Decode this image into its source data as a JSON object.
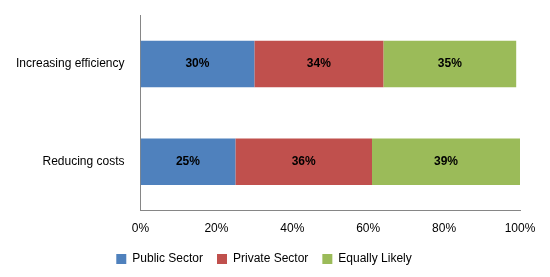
{
  "chart_data": {
    "type": "bar",
    "orientation": "horizontal",
    "stacked": true,
    "categories": [
      "Increasing efficiency",
      "Reducing costs"
    ],
    "series": [
      {
        "name": "Public Sector",
        "color": "#4f81bd",
        "values": [
          30,
          25
        ],
        "value_labels": [
          "30%",
          "25%"
        ]
      },
      {
        "name": "Private Sector",
        "color": "#c0504d",
        "values": [
          34,
          36
        ],
        "value_labels": [
          "34%",
          "36%"
        ]
      },
      {
        "name": "Equally Likely",
        "color": "#9bbb59",
        "values": [
          35,
          39
        ],
        "value_labels": [
          "35%",
          "39%"
        ]
      }
    ],
    "xlim": [
      0,
      100
    ],
    "xticks": [
      {
        "value": 0,
        "label": "0%"
      },
      {
        "value": 20,
        "label": "20%"
      },
      {
        "value": 40,
        "label": "40%"
      },
      {
        "value": 60,
        "label": "60%"
      },
      {
        "value": 80,
        "label": "80%"
      },
      {
        "value": 100,
        "label": "100%"
      }
    ],
    "grid": false,
    "legend": "bottom",
    "data_labels": true
  }
}
